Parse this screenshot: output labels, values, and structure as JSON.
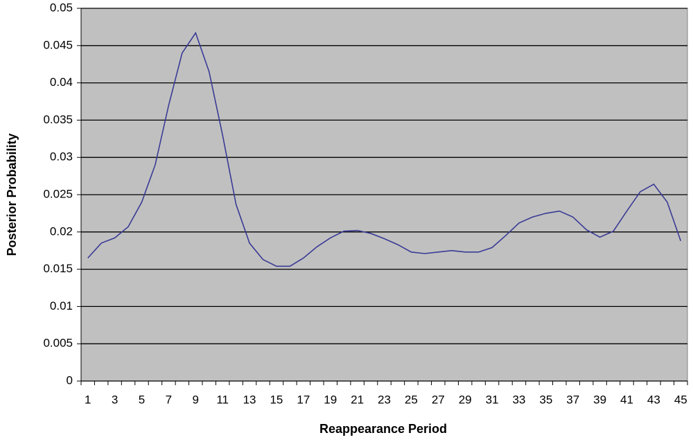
{
  "chart_data": {
    "type": "line",
    "x_label": "Reappearance Period",
    "y_label": "Posterior Probability",
    "categories": [
      "1",
      null,
      "3",
      null,
      "5",
      null,
      "7",
      null,
      "9",
      null,
      "11",
      null,
      "13",
      null,
      "15",
      null,
      "17",
      null,
      "19",
      null,
      "21",
      null,
      "23",
      null,
      "25",
      null,
      "27",
      null,
      "29",
      null,
      "31",
      null,
      "33",
      null,
      "35",
      null,
      "37",
      null,
      "39",
      null,
      "41",
      null,
      "43",
      null,
      "45"
    ],
    "series": [
      {
        "color": "#3a3a96",
        "values": [
          0.0165,
          0.0185,
          0.0192,
          0.0207,
          0.024,
          0.029,
          0.037,
          0.044,
          0.0467,
          0.0415,
          0.033,
          0.0237,
          0.0185,
          0.0163,
          0.0154,
          0.0154,
          0.0165,
          0.018,
          0.0192,
          0.0201,
          0.0202,
          0.0198,
          0.0191,
          0.0183,
          0.0173,
          0.0171,
          0.0173,
          0.0175,
          0.0173,
          0.0173,
          0.0179,
          0.0195,
          0.0212,
          0.022,
          0.0225,
          0.0228,
          0.022,
          0.0203,
          0.0193,
          0.0201,
          0.0228,
          0.0254,
          0.0264,
          0.024,
          0.0188
        ]
      }
    ],
    "ylim": [
      0,
      0.05
    ],
    "yticks": [
      0,
      0.005,
      0.01,
      0.015,
      0.02,
      0.025,
      0.03,
      0.035,
      0.04,
      0.045,
      0.05
    ],
    "grid": true,
    "plot_background": "#c0c0c0"
  }
}
